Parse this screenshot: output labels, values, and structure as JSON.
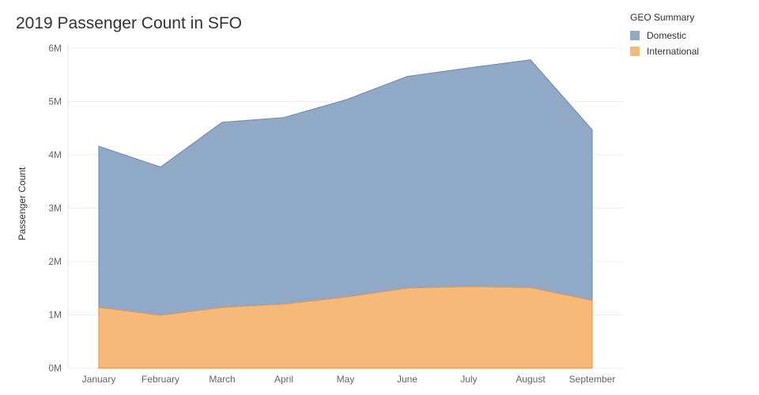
{
  "chart_data": {
    "type": "area",
    "stacked": true,
    "title": "2019 Passenger Count in SFO",
    "xlabel": "",
    "ylabel": "Passenger Count",
    "categories": [
      "January",
      "February",
      "March",
      "April",
      "May",
      "June",
      "July",
      "August",
      "September"
    ],
    "ylim": [
      0,
      6000000
    ],
    "yticks": [
      0,
      1000000,
      2000000,
      3000000,
      4000000,
      5000000,
      6000000
    ],
    "ytick_labels": [
      "0M",
      "1M",
      "2M",
      "3M",
      "4M",
      "5M",
      "6M"
    ],
    "grid": true,
    "legend_title": "GEO Summary",
    "legend_placement": "top-right",
    "series": [
      {
        "name": "International",
        "color": "#f5b97a",
        "values": [
          1140000,
          990000,
          1140000,
          1200000,
          1330000,
          1500000,
          1530000,
          1510000,
          1270000
        ]
      },
      {
        "name": "Domestic",
        "color": "#8fa9c7",
        "values": [
          3020000,
          2780000,
          3470000,
          3500000,
          3700000,
          3970000,
          4100000,
          4270000,
          3200000
        ]
      }
    ],
    "legend_order": [
      "Domestic",
      "International"
    ]
  }
}
